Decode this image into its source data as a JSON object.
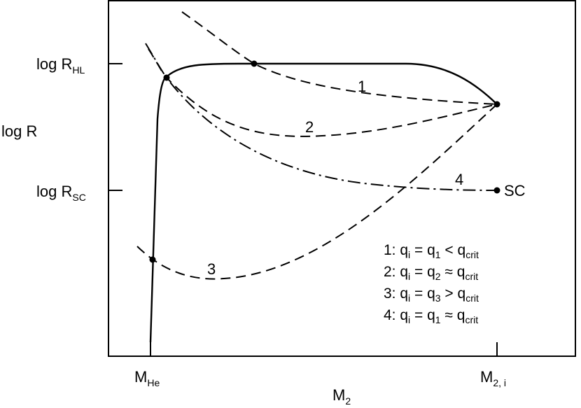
{
  "y_ticks": [
    {
      "id": "rhl",
      "main": "log R",
      "sub": "HL"
    },
    {
      "id": "rsc",
      "main": "log R",
      "sub": "SC"
    }
  ],
  "y_axis_label": "log R",
  "x_ticks": [
    {
      "id": "mhe",
      "main": "M",
      "sub": "He"
    },
    {
      "id": "m2i",
      "main": "M",
      "sub": "2, i"
    }
  ],
  "x_axis_label": {
    "main": "M",
    "sub": "2"
  },
  "curve_labels": {
    "c1": "1",
    "c2": "2",
    "c3": "3",
    "c4": "4"
  },
  "endpoint_label": "SC",
  "legend": [
    {
      "num": "1: ",
      "qi": "q",
      "qi_sub": "i",
      "eq": " = q",
      "qn_sub": "1",
      "rel": " < q",
      "crit": "crit"
    },
    {
      "num": "2: ",
      "qi": "q",
      "qi_sub": "i",
      "eq": " = q",
      "qn_sub": "2",
      "rel": " ≈ q",
      "crit": "crit"
    },
    {
      "num": "3: ",
      "qi": "q",
      "qi_sub": "i",
      "eq": " = q",
      "qn_sub": "3",
      "rel": " > q",
      "crit": "crit"
    },
    {
      "num": "4: ",
      "qi": "q",
      "qi_sub": "i",
      "eq": " = q",
      "qn_sub": "1",
      "rel": " ≈ q",
      "crit": "crit"
    }
  ]
}
